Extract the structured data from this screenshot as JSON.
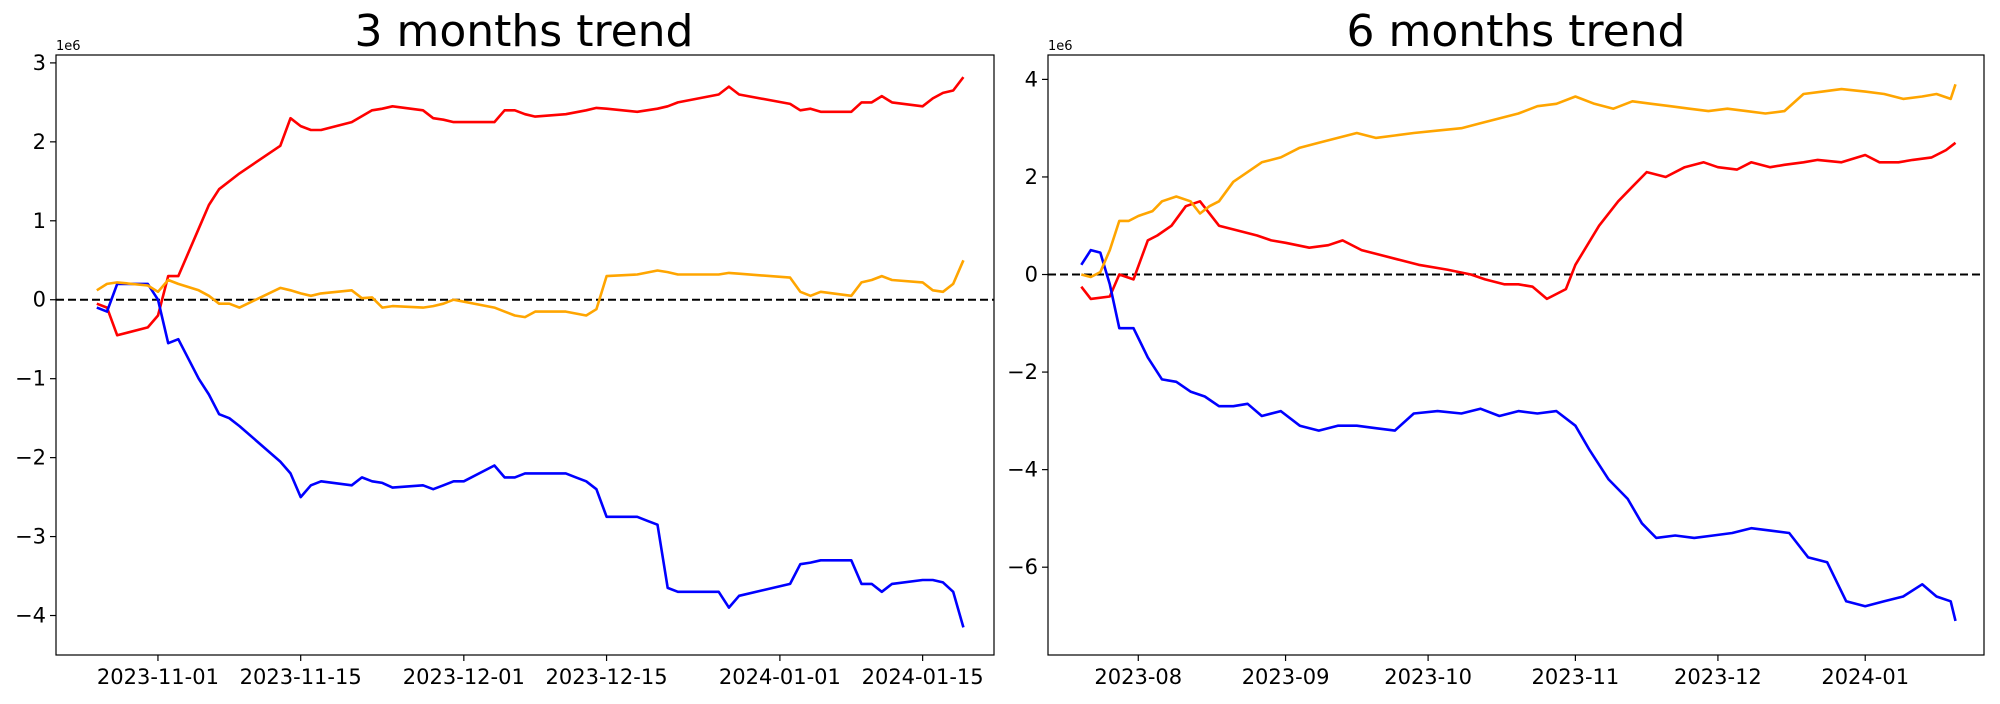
{
  "chart_data": [
    {
      "type": "line",
      "title": "3 months trend",
      "xlabel": "",
      "ylabel": "",
      "axis_offset_label": "1e6",
      "x_type": "date",
      "xlim": [
        "2023-10-22",
        "2024-01-22"
      ],
      "ylim": [
        -4.5,
        3.1
      ],
      "xticks": [
        "2023-11-01",
        "2023-11-15",
        "2023-12-01",
        "2023-12-15",
        "2024-01-01",
        "2024-01-15"
      ],
      "yticks": [
        3,
        2,
        1,
        0,
        -1,
        -2,
        -3,
        -4
      ],
      "ytick_labels": [
        "3",
        "2",
        "1",
        "0",
        "−1",
        "−2",
        "−3",
        "−4"
      ],
      "reference_line": {
        "y": 0,
        "style": "dashed",
        "color": "#000000"
      },
      "grid": false,
      "legend": "none",
      "series": [
        {
          "color": "#ff0000",
          "x": [
            "2023-10-26",
            "2023-10-27",
            "2023-10-28",
            "2023-10-31",
            "2023-11-01",
            "2023-11-02",
            "2023-11-03",
            "2023-11-05",
            "2023-11-06",
            "2023-11-07",
            "2023-11-09",
            "2023-11-13",
            "2023-11-14",
            "2023-11-15",
            "2023-11-16",
            "2023-11-17",
            "2023-11-20",
            "2023-11-22",
            "2023-11-23",
            "2023-11-24",
            "2023-11-27",
            "2023-11-28",
            "2023-11-29",
            "2023-11-30",
            "2023-12-04",
            "2023-12-05",
            "2023-12-06",
            "2023-12-07",
            "2023-12-08",
            "2023-12-11",
            "2023-12-13",
            "2023-12-14",
            "2023-12-15",
            "2023-12-18",
            "2023-12-20",
            "2023-12-21",
            "2023-12-22",
            "2023-12-26",
            "2023-12-27",
            "2023-12-28",
            "2024-01-02",
            "2024-01-03",
            "2024-01-04",
            "2024-01-05",
            "2024-01-08",
            "2024-01-09",
            "2024-01-10",
            "2024-01-11",
            "2024-01-12",
            "2024-01-15",
            "2024-01-16",
            "2024-01-17",
            "2024-01-18",
            "2024-01-19"
          ],
          "values": [
            -0.05,
            -0.1,
            -0.45,
            -0.35,
            -0.2,
            0.3,
            0.3,
            0.9,
            1.2,
            1.4,
            1.6,
            1.95,
            2.3,
            2.2,
            2.15,
            2.15,
            2.25,
            2.4,
            2.42,
            2.45,
            2.4,
            2.3,
            2.28,
            2.25,
            2.25,
            2.4,
            2.4,
            2.35,
            2.32,
            2.35,
            2.4,
            2.43,
            2.42,
            2.38,
            2.42,
            2.45,
            2.5,
            2.6,
            2.7,
            2.6,
            2.48,
            2.4,
            2.42,
            2.38,
            2.38,
            2.5,
            2.5,
            2.58,
            2.5,
            2.45,
            2.55,
            2.62,
            2.65,
            2.82
          ]
        },
        {
          "color": "#0000ff",
          "x": [
            "2023-10-26",
            "2023-10-27",
            "2023-10-28",
            "2023-10-31",
            "2023-11-01",
            "2023-11-02",
            "2023-11-03",
            "2023-11-05",
            "2023-11-06",
            "2023-11-07",
            "2023-11-08",
            "2023-11-09",
            "2023-11-13",
            "2023-11-14",
            "2023-11-15",
            "2023-11-16",
            "2023-11-17",
            "2023-11-20",
            "2023-11-21",
            "2023-11-22",
            "2023-11-23",
            "2023-11-24",
            "2023-11-27",
            "2023-11-28",
            "2023-11-29",
            "2023-11-30",
            "2023-12-01",
            "2023-12-04",
            "2023-12-05",
            "2023-12-06",
            "2023-12-07",
            "2023-12-08",
            "2023-12-11",
            "2023-12-12",
            "2023-12-13",
            "2023-12-14",
            "2023-12-15",
            "2023-12-18",
            "2023-12-19",
            "2023-12-20",
            "2023-12-21",
            "2023-12-22",
            "2023-12-26",
            "2023-12-27",
            "2023-12-28",
            "2024-01-02",
            "2024-01-03",
            "2024-01-04",
            "2024-01-05",
            "2024-01-08",
            "2024-01-09",
            "2024-01-10",
            "2024-01-11",
            "2024-01-12",
            "2024-01-15",
            "2024-01-16",
            "2024-01-17",
            "2024-01-18",
            "2024-01-19"
          ],
          "values": [
            -0.1,
            -0.15,
            0.2,
            0.2,
            0.0,
            -0.55,
            -0.5,
            -1.0,
            -1.2,
            -1.45,
            -1.5,
            -1.6,
            -2.05,
            -2.2,
            -2.5,
            -2.35,
            -2.3,
            -2.35,
            -2.25,
            -2.3,
            -2.32,
            -2.38,
            -2.35,
            -2.4,
            -2.35,
            -2.3,
            -2.3,
            -2.1,
            -2.25,
            -2.25,
            -2.2,
            -2.2,
            -2.2,
            -2.25,
            -2.3,
            -2.4,
            -2.75,
            -2.75,
            -2.8,
            -2.85,
            -3.65,
            -3.7,
            -3.7,
            -3.9,
            -3.75,
            -3.6,
            -3.35,
            -3.33,
            -3.3,
            -3.3,
            -3.6,
            -3.6,
            -3.7,
            -3.6,
            -3.55,
            -3.55,
            -3.58,
            -3.7,
            -4.15
          ]
        },
        {
          "color": "#ffa500",
          "x": [
            "2023-10-26",
            "2023-10-27",
            "2023-10-28",
            "2023-10-31",
            "2023-11-01",
            "2023-11-02",
            "2023-11-03",
            "2023-11-05",
            "2023-11-06",
            "2023-11-07",
            "2023-11-08",
            "2023-11-09",
            "2023-11-13",
            "2023-11-14",
            "2023-11-15",
            "2023-11-16",
            "2023-11-17",
            "2023-11-20",
            "2023-11-21",
            "2023-11-22",
            "2023-11-23",
            "2023-11-24",
            "2023-11-27",
            "2023-11-28",
            "2023-11-29",
            "2023-11-30",
            "2023-12-04",
            "2023-12-05",
            "2023-12-06",
            "2023-12-07",
            "2023-12-08",
            "2023-12-11",
            "2023-12-13",
            "2023-12-14",
            "2023-12-15",
            "2023-12-18",
            "2023-12-20",
            "2023-12-21",
            "2023-12-22",
            "2023-12-26",
            "2023-12-27",
            "2023-12-28",
            "2024-01-02",
            "2024-01-03",
            "2024-01-04",
            "2024-01-05",
            "2024-01-08",
            "2024-01-09",
            "2024-01-10",
            "2024-01-11",
            "2024-01-12",
            "2024-01-15",
            "2024-01-16",
            "2024-01-17",
            "2024-01-18",
            "2024-01-19"
          ],
          "values": [
            0.12,
            0.2,
            0.22,
            0.18,
            0.1,
            0.25,
            0.2,
            0.12,
            0.05,
            -0.05,
            -0.05,
            -0.1,
            0.15,
            0.12,
            0.08,
            0.05,
            0.08,
            0.12,
            0.02,
            0.03,
            -0.1,
            -0.08,
            -0.1,
            -0.08,
            -0.05,
            0.0,
            -0.1,
            -0.15,
            -0.2,
            -0.22,
            -0.15,
            -0.15,
            -0.2,
            -0.12,
            0.3,
            0.32,
            0.37,
            0.35,
            0.32,
            0.32,
            0.34,
            0.33,
            0.28,
            0.1,
            0.05,
            0.1,
            0.05,
            0.22,
            0.25,
            0.3,
            0.25,
            0.22,
            0.12,
            0.1,
            0.2,
            0.5
          ]
        }
      ]
    },
    {
      "type": "line",
      "title": "6 months trend",
      "xlabel": "",
      "ylabel": "",
      "axis_offset_label": "1e6",
      "x_type": "date",
      "xlim": [
        "2023-07-13",
        "2024-01-26"
      ],
      "ylim": [
        -7.8,
        4.5
      ],
      "xticks": [
        "2023-08-01",
        "2023-09-01",
        "2023-10-01",
        "2023-11-01",
        "2023-12-01",
        "2024-01-01"
      ],
      "xtick_labels": [
        "2023-08",
        "2023-09",
        "2023-10",
        "2023-11",
        "2023-12",
        "2024-01"
      ],
      "yticks": [
        4,
        2,
        0,
        -2,
        -4,
        -6
      ],
      "ytick_labels": [
        "4",
        "2",
        "0",
        "−2",
        "−4",
        "−6"
      ],
      "reference_line": {
        "y": 0,
        "style": "dashed",
        "color": "#000000"
      },
      "grid": false,
      "legend": "none",
      "series": [
        {
          "color": "#ff0000",
          "x": [
            "2023-07-20",
            "2023-07-22",
            "2023-07-26",
            "2023-07-28",
            "2023-07-31",
            "2023-08-03",
            "2023-08-05",
            "2023-08-08",
            "2023-08-11",
            "2023-08-14",
            "2023-08-18",
            "2023-08-22",
            "2023-08-26",
            "2023-08-29",
            "2023-09-01",
            "2023-09-06",
            "2023-09-10",
            "2023-09-13",
            "2023-09-17",
            "2023-09-21",
            "2023-09-25",
            "2023-09-29",
            "2023-10-05",
            "2023-10-10",
            "2023-10-13",
            "2023-10-17",
            "2023-10-20",
            "2023-10-23",
            "2023-10-26",
            "2023-10-30",
            "2023-11-01",
            "2023-11-06",
            "2023-11-10",
            "2023-11-13",
            "2023-11-16",
            "2023-11-20",
            "2023-11-24",
            "2023-11-28",
            "2023-12-01",
            "2023-12-05",
            "2023-12-08",
            "2023-12-12",
            "2023-12-15",
            "2023-12-19",
            "2023-12-22",
            "2023-12-27",
            "2024-01-01",
            "2024-01-04",
            "2024-01-08",
            "2024-01-11",
            "2024-01-15",
            "2024-01-18",
            "2024-01-20"
          ],
          "values": [
            -0.25,
            -0.5,
            -0.45,
            0.0,
            -0.1,
            0.7,
            0.8,
            1.0,
            1.4,
            1.5,
            1.0,
            0.9,
            0.8,
            0.7,
            0.65,
            0.55,
            0.6,
            0.7,
            0.5,
            0.4,
            0.3,
            0.2,
            0.1,
            0.0,
            -0.1,
            -0.2,
            -0.2,
            -0.25,
            -0.5,
            -0.3,
            0.2,
            1.0,
            1.5,
            1.8,
            2.1,
            2.0,
            2.2,
            2.3,
            2.2,
            2.15,
            2.3,
            2.2,
            2.25,
            2.3,
            2.35,
            2.3,
            2.45,
            2.3,
            2.3,
            2.35,
            2.4,
            2.55,
            2.7
          ]
        },
        {
          "color": "#0000ff",
          "x": [
            "2023-07-20",
            "2023-07-22",
            "2023-07-24",
            "2023-07-26",
            "2023-07-28",
            "2023-07-31",
            "2023-08-03",
            "2023-08-06",
            "2023-08-09",
            "2023-08-12",
            "2023-08-15",
            "2023-08-18",
            "2023-08-21",
            "2023-08-24",
            "2023-08-27",
            "2023-08-31",
            "2023-09-04",
            "2023-09-08",
            "2023-09-12",
            "2023-09-16",
            "2023-09-20",
            "2023-09-24",
            "2023-09-28",
            "2023-10-03",
            "2023-10-08",
            "2023-10-12",
            "2023-10-16",
            "2023-10-20",
            "2023-10-24",
            "2023-10-28",
            "2023-11-01",
            "2023-11-04",
            "2023-11-08",
            "2023-11-12",
            "2023-11-15",
            "2023-11-18",
            "2023-11-22",
            "2023-11-26",
            "2023-11-30",
            "2023-12-04",
            "2023-12-08",
            "2023-12-12",
            "2023-12-16",
            "2023-12-20",
            "2023-12-24",
            "2023-12-28",
            "2024-01-01",
            "2024-01-05",
            "2024-01-09",
            "2024-01-13",
            "2024-01-16",
            "2024-01-19",
            "2024-01-20"
          ],
          "values": [
            0.2,
            0.5,
            0.45,
            -0.2,
            -1.1,
            -1.1,
            -1.7,
            -2.15,
            -2.2,
            -2.4,
            -2.5,
            -2.7,
            -2.7,
            -2.65,
            -2.9,
            -2.8,
            -3.1,
            -3.2,
            -3.1,
            -3.1,
            -3.15,
            -3.2,
            -2.85,
            -2.8,
            -2.85,
            -2.75,
            -2.9,
            -2.8,
            -2.85,
            -2.8,
            -3.1,
            -3.6,
            -4.2,
            -4.6,
            -5.1,
            -5.4,
            -5.35,
            -5.4,
            -5.35,
            -5.3,
            -5.2,
            -5.25,
            -5.3,
            -5.8,
            -5.9,
            -6.7,
            -6.8,
            -6.7,
            -6.6,
            -6.35,
            -6.6,
            -6.7,
            -7.1
          ]
        },
        {
          "color": "#ffa500",
          "x": [
            "2023-07-20",
            "2023-07-22",
            "2023-07-24",
            "2023-07-26",
            "2023-07-28",
            "2023-07-30",
            "2023-08-01",
            "2023-08-04",
            "2023-08-06",
            "2023-08-09",
            "2023-08-12",
            "2023-08-14",
            "2023-08-16",
            "2023-08-18",
            "2023-08-21",
            "2023-08-24",
            "2023-08-27",
            "2023-08-31",
            "2023-09-04",
            "2023-09-08",
            "2023-09-12",
            "2023-09-16",
            "2023-09-20",
            "2023-09-24",
            "2023-09-28",
            "2023-10-03",
            "2023-10-08",
            "2023-10-12",
            "2023-10-16",
            "2023-10-20",
            "2023-10-24",
            "2023-10-28",
            "2023-11-01",
            "2023-11-05",
            "2023-11-09",
            "2023-11-13",
            "2023-11-17",
            "2023-11-21",
            "2023-11-25",
            "2023-11-29",
            "2023-12-03",
            "2023-12-07",
            "2023-12-11",
            "2023-12-15",
            "2023-12-19",
            "2023-12-23",
            "2023-12-27",
            "2024-01-01",
            "2024-01-05",
            "2024-01-09",
            "2024-01-13",
            "2024-01-16",
            "2024-01-19",
            "2024-01-20"
          ],
          "values": [
            0.0,
            -0.05,
            0.05,
            0.5,
            1.1,
            1.1,
            1.2,
            1.3,
            1.5,
            1.6,
            1.5,
            1.25,
            1.4,
            1.5,
            1.9,
            2.1,
            2.3,
            2.4,
            2.6,
            2.7,
            2.8,
            2.9,
            2.8,
            2.85,
            2.9,
            2.95,
            3.0,
            3.1,
            3.2,
            3.3,
            3.45,
            3.5,
            3.65,
            3.5,
            3.4,
            3.55,
            3.5,
            3.45,
            3.4,
            3.35,
            3.4,
            3.35,
            3.3,
            3.35,
            3.7,
            3.75,
            3.8,
            3.75,
            3.7,
            3.6,
            3.65,
            3.7,
            3.6,
            3.9
          ]
        }
      ]
    }
  ]
}
